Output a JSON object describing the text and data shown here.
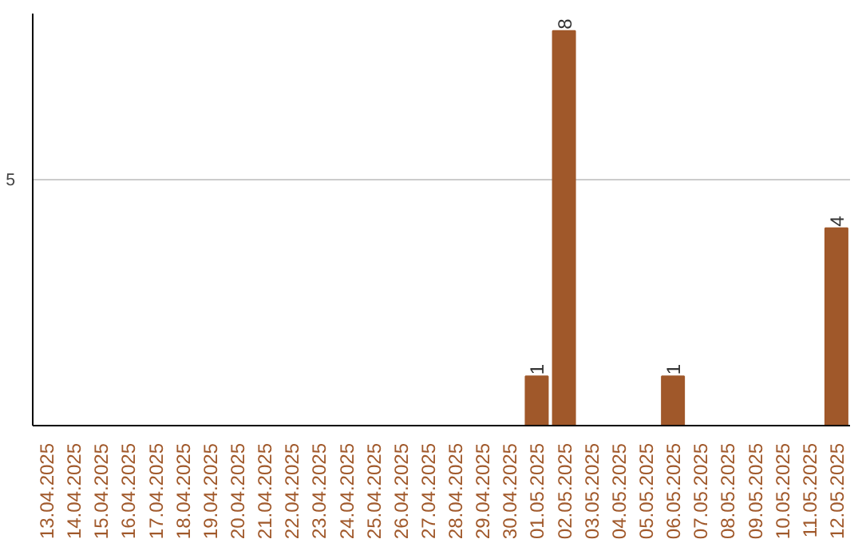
{
  "chart_data": {
    "type": "bar",
    "categories": [
      "13.04.2025",
      "14.04.2025",
      "15.04.2025",
      "16.04.2025",
      "17.04.2025",
      "18.04.2025",
      "19.04.2025",
      "20.04.2025",
      "21.04.2025",
      "22.04.2025",
      "23.04.2025",
      "24.04.2025",
      "25.04.2025",
      "26.04.2025",
      "27.04.2025",
      "28.04.2025",
      "29.04.2025",
      "30.04.2025",
      "01.05.2025",
      "02.05.2025",
      "03.05.2025",
      "04.05.2025",
      "05.05.2025",
      "06.05.2025",
      "07.05.2025",
      "08.05.2025",
      "09.05.2025",
      "10.05.2025",
      "11.05.2025",
      "12.05.2025"
    ],
    "values": [
      null,
      null,
      null,
      null,
      null,
      null,
      null,
      null,
      null,
      null,
      null,
      null,
      null,
      null,
      null,
      null,
      null,
      null,
      1,
      8,
      null,
      null,
      null,
      1,
      null,
      null,
      null,
      null,
      null,
      4
    ],
    "data_labels": true,
    "color": "#a0582a",
    "ylim": [
      0,
      8.35
    ],
    "yticks": [
      5
    ],
    "grid": "y"
  }
}
